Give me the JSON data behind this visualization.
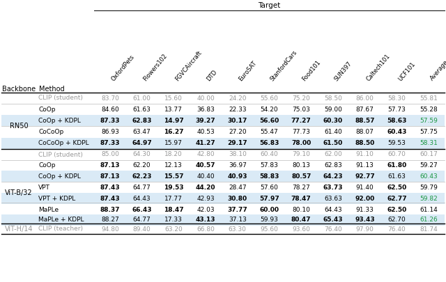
{
  "title": "Target",
  "col_headers": [
    "OxfordPets",
    "Flowers102",
    "FGVCAircraft",
    "DTD",
    "EuroSAT",
    "StanfordCars",
    "Food101",
    "SUN397",
    "Caltech101",
    "UCF101",
    "Average"
  ],
  "row_groups": [
    {
      "backbone": "RN50",
      "clip_student": [
        "83.70",
        "61.00",
        "15.60",
        "40.00",
        "24.20",
        "55.60",
        "75.20",
        "58.50",
        "86.00",
        "58.30",
        "55.81"
      ],
      "rows": [
        {
          "method": "CoOp",
          "values": [
            "84.60",
            "61.63",
            "13.77",
            "36.83",
            "22.33",
            "54.20",
            "75.03",
            "59.00",
            "87.67",
            "57.73",
            "55.28"
          ],
          "bold_indices": [],
          "highlighted": false
        },
        {
          "method": "CoOp + KDPL",
          "values": [
            "87.33",
            "62.83",
            "14.97",
            "39.27",
            "30.17",
            "56.60",
            "77.27",
            "60.30",
            "88.57",
            "58.63",
            "57.59"
          ],
          "bold_indices": [
            0,
            1,
            2,
            3,
            4,
            5,
            6,
            7,
            8,
            9
          ],
          "green_index": 10,
          "highlighted": true
        },
        {
          "method": "CoCoOp",
          "values": [
            "86.93",
            "63.47",
            "16.27",
            "40.53",
            "27.20",
            "55.47",
            "77.73",
            "61.40",
            "88.07",
            "60.43",
            "57.75"
          ],
          "bold_indices": [
            2,
            9
          ],
          "highlighted": false
        },
        {
          "method": "CoCoOp + KDPL",
          "values": [
            "87.33",
            "64.97",
            "15.97",
            "41.27",
            "29.17",
            "56.83",
            "78.00",
            "61.50",
            "88.50",
            "59.53",
            "58.31"
          ],
          "bold_indices": [
            0,
            1,
            3,
            4,
            5,
            6,
            7,
            8
          ],
          "green_index": 10,
          "highlighted": true
        }
      ]
    },
    {
      "backbone": "ViT-B/32",
      "clip_student": [
        "85.00",
        "64.30",
        "18.20",
        "42.80",
        "38.10",
        "60.40",
        "79.10",
        "62.00",
        "91.10",
        "60.70",
        "60.17"
      ],
      "rows": [
        {
          "method": "CoOp",
          "values": [
            "87.13",
            "62.20",
            "12.13",
            "40.57",
            "36.97",
            "57.83",
            "80.13",
            "62.83",
            "91.13",
            "61.80",
            "59.27"
          ],
          "bold_indices": [
            0,
            3,
            9
          ],
          "highlighted": false
        },
        {
          "method": "CoOp + KDPL",
          "values": [
            "87.13",
            "62.23",
            "15.57",
            "40.40",
            "40.93",
            "58.83",
            "80.57",
            "64.23",
            "92.77",
            "61.63",
            "60.43"
          ],
          "bold_indices": [
            0,
            1,
            2,
            4,
            5,
            6,
            7,
            8
          ],
          "green_index": 10,
          "highlighted": true
        },
        {
          "method": "VPT",
          "values": [
            "87.43",
            "64.77",
            "19.53",
            "44.20",
            "28.47",
            "57.60",
            "78.27",
            "63.73",
            "91.40",
            "62.50",
            "59.79"
          ],
          "bold_indices": [
            0,
            2,
            3,
            7,
            9
          ],
          "highlighted": false
        },
        {
          "method": "VPT + KDPL",
          "values": [
            "87.43",
            "64.43",
            "17.77",
            "42.93",
            "30.80",
            "57.97",
            "78.47",
            "63.63",
            "92.00",
            "62.77",
            "59.82"
          ],
          "bold_indices": [
            0,
            4,
            5,
            6,
            8,
            9
          ],
          "green_index": 10,
          "highlighted": true
        },
        {
          "method": "MaPLe",
          "values": [
            "88.37",
            "66.43",
            "18.47",
            "42.03",
            "37.77",
            "60.00",
            "80.10",
            "64.43",
            "91.33",
            "62.50",
            "61.14"
          ],
          "bold_indices": [
            0,
            1,
            2,
            4,
            5,
            9
          ],
          "highlighted": false
        },
        {
          "method": "MaPLe + KDPL",
          "values": [
            "88.27",
            "64.77",
            "17.33",
            "43.13",
            "37.13",
            "59.93",
            "80.47",
            "65.43",
            "93.43",
            "62.70",
            "61.26"
          ],
          "bold_indices": [
            3,
            6,
            7,
            8
          ],
          "green_index": 10,
          "highlighted": true
        }
      ]
    }
  ],
  "vit_h14": {
    "backbone": "ViT-H/14",
    "method": "CLIP (teacher)",
    "values": [
      "94.80",
      "89.40",
      "63.20",
      "66.80",
      "63.30",
      "95.60",
      "93.60",
      "76.40",
      "97.90",
      "76.40",
      "81.74"
    ]
  },
  "highlight_color": "#daeaf6",
  "green_color": "#1a9641",
  "gray_color": "#999999"
}
